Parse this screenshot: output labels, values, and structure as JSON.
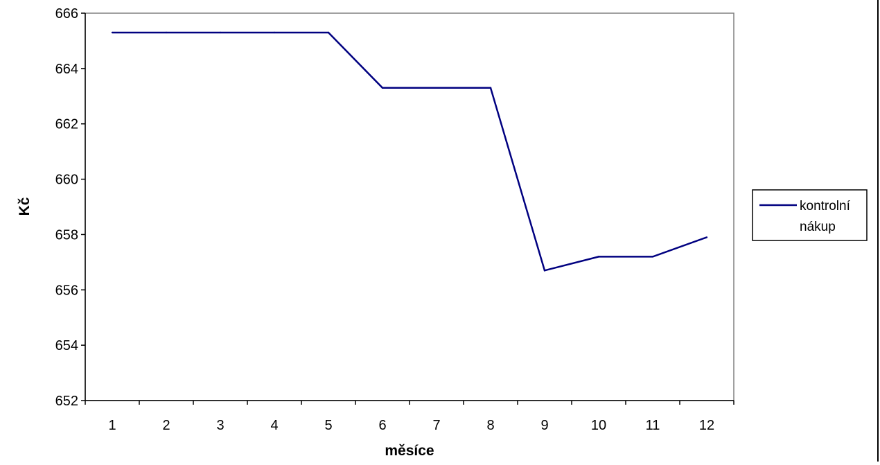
{
  "chart_data": {
    "type": "line",
    "title": "",
    "xlabel": "měsíce",
    "ylabel": "Kč",
    "categories": [
      "1",
      "2",
      "3",
      "4",
      "5",
      "6",
      "7",
      "8",
      "9",
      "10",
      "11",
      "12"
    ],
    "series": [
      {
        "name_lines": [
          "kontrolní",
          "nákup"
        ],
        "values": [
          665.3,
          665.3,
          665.3,
          665.3,
          665.3,
          663.3,
          663.3,
          663.3,
          656.7,
          657.2,
          657.2,
          657.9
        ],
        "color": "#000080"
      }
    ],
    "ylim": [
      652,
      666
    ],
    "yticks": [
      "652",
      "654",
      "656",
      "658",
      "660",
      "662",
      "664",
      "666"
    ],
    "grid": false,
    "legend_position": "right"
  }
}
